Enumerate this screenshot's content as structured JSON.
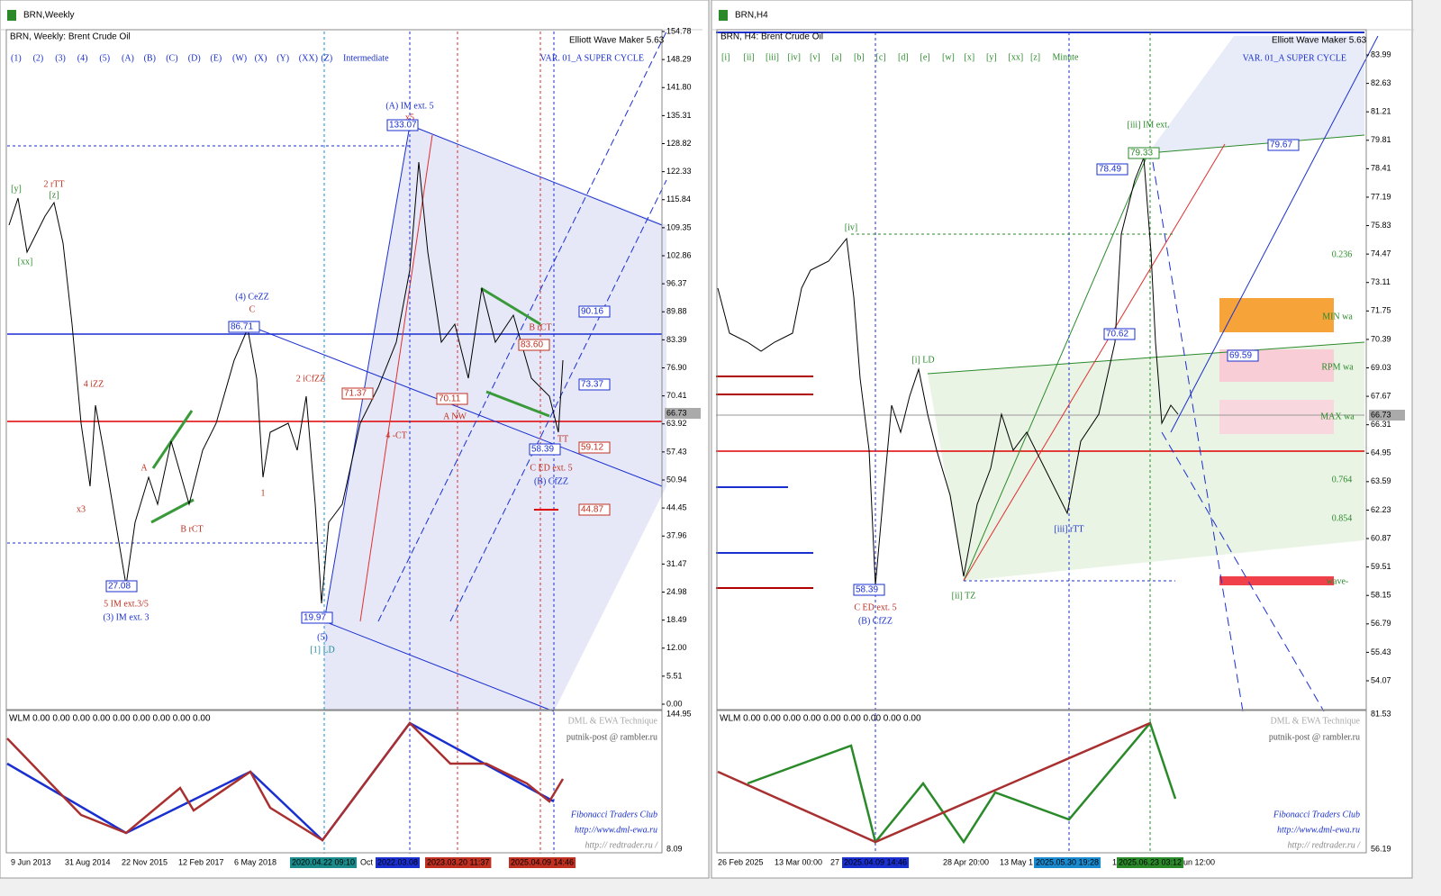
{
  "windows": [
    {
      "title": "BRN,Weekly",
      "symbol_line": "BRN, Weekly:  Brent Crude Oil",
      "wave_buttons": [
        "(1)",
        "(2)",
        "(3)",
        "(4)",
        "(5)",
        "(A)",
        "(B)",
        "(C)",
        "(D)",
        "(E)",
        "(W)",
        "(X)",
        "(Y)",
        "(XX)",
        "(Z)",
        "Intermediate"
      ],
      "plugin": "Elliott Wave Maker 5.63",
      "variant": "VAR. 01_A SUPER CYCLE",
      "price_axis": [
        "154.78",
        "148.29",
        "141.80",
        "135.31",
        "128.82",
        "122.33",
        "115.84",
        "109.35",
        "102.86",
        "96.37",
        "89.88",
        "83.39",
        "76.90",
        "70.41",
        "63.92",
        "57.43",
        "50.94",
        "44.45",
        "37.96",
        "31.47",
        "24.98",
        "18.49",
        "12.00",
        "5.51",
        "0.00"
      ],
      "current_price": "66.73",
      "labels": [
        "(A) IM ext. 5",
        "x5",
        "2 rTT",
        "[z]",
        "[y]",
        "[xx]",
        "(4) CeZZ",
        "C",
        "4 iZZ",
        "2 iCfZZ",
        "x3",
        "A",
        "B rCT",
        "1",
        "5 IM ext.3/5",
        "(3) IM ext. 3",
        "(5)",
        "[1] LD",
        "4 -CT",
        "A NW",
        "B rCT",
        "C ED ext. 5",
        "(B) CfZZ",
        "TT"
      ],
      "price_boxes": [
        "133.07",
        "86.71",
        "27.08",
        "19.97",
        "71.37",
        "70.11",
        "83.60",
        "90.16",
        "73.37",
        "58.39",
        "59.12",
        "44.87"
      ],
      "indicator": {
        "header": "WLM 0.00 0.00 0.00 0.00 0.00 0.00 0.00 0.00 0.00",
        "axis": [
          "144.95",
          "8.09"
        ],
        "credits": [
          "DML & EWA Technique",
          "putnik-post @ rambler.ru",
          "Fibonacci    Traders    Club",
          "http://www.dml-ewa.ru",
          "http://  redtrader.ru  /"
        ]
      },
      "dates": [
        "9 Jun 2013",
        "31 Aug 2014",
        "22 Nov 2015",
        "12 Feb 2017",
        "6 May 2018",
        "2020.04.22 09:10",
        "Oct",
        "2022.03.08",
        "2023.03.20 11:37",
        "2025.04.09 14:46"
      ]
    },
    {
      "title": "BRN,H4",
      "symbol_line": "BRN, H4:  Brent Crude Oil",
      "wave_buttons": [
        "[i]",
        "[ii]",
        "[iii]",
        "[iv]",
        "[v]",
        "[a]",
        "[b]",
        "[c]",
        "[d]",
        "[e]",
        "[w]",
        "[x]",
        "[y]",
        "[xx]",
        "[z]",
        "Minute"
      ],
      "plugin": "Elliott Wave Maker 5.63",
      "variant": "VAR. 01_A SUPER CYCLE",
      "price_axis": [
        "83.99",
        "82.63",
        "81.21",
        "79.81",
        "78.41",
        "77.19",
        "75.83",
        "74.47",
        "73.11",
        "71.75",
        "70.39",
        "69.03",
        "67.67",
        "66.31",
        "64.95",
        "63.59",
        "62.23",
        "60.87",
        "59.51",
        "58.15",
        "56.79",
        "55.43",
        "54.07"
      ],
      "current_price": "66.73",
      "labels": [
        "[iv]",
        "[i] LD",
        "[iii] IM ext.",
        "C ED ext. 5",
        "(B) CfZZ",
        "[ii] TZ",
        "[iii] rTT",
        "MIN wa",
        "RPM wa",
        "MAX wa",
        "0.236",
        "0.764",
        "0.854",
        "wave-"
      ],
      "price_boxes": [
        "79.33",
        "78.49",
        "70.62",
        "79.67",
        "69.59",
        "58.39"
      ],
      "indicator": {
        "header": "WLM 0.00 0.00 0.00 0.00 0.00 0.00 0.00 0.00 0.00",
        "axis": [
          "81.53",
          "56.19"
        ],
        "credits": [
          "DML & EWA Technique",
          "putnik-post @ rambler.ru",
          "Fibonacci    Traders    Club",
          "http://www.dml-ewa.ru",
          "http://  redtrader.ru  /"
        ]
      },
      "dates": [
        "26 Feb 2025",
        "13 Mar 00:00",
        "27",
        "2025.04.09 14:46",
        "28 Apr 20:00",
        "13 May 1",
        "2025.05.30 19:28",
        "1",
        "2025.06.23 03:12",
        "un 12:00"
      ]
    }
  ]
}
